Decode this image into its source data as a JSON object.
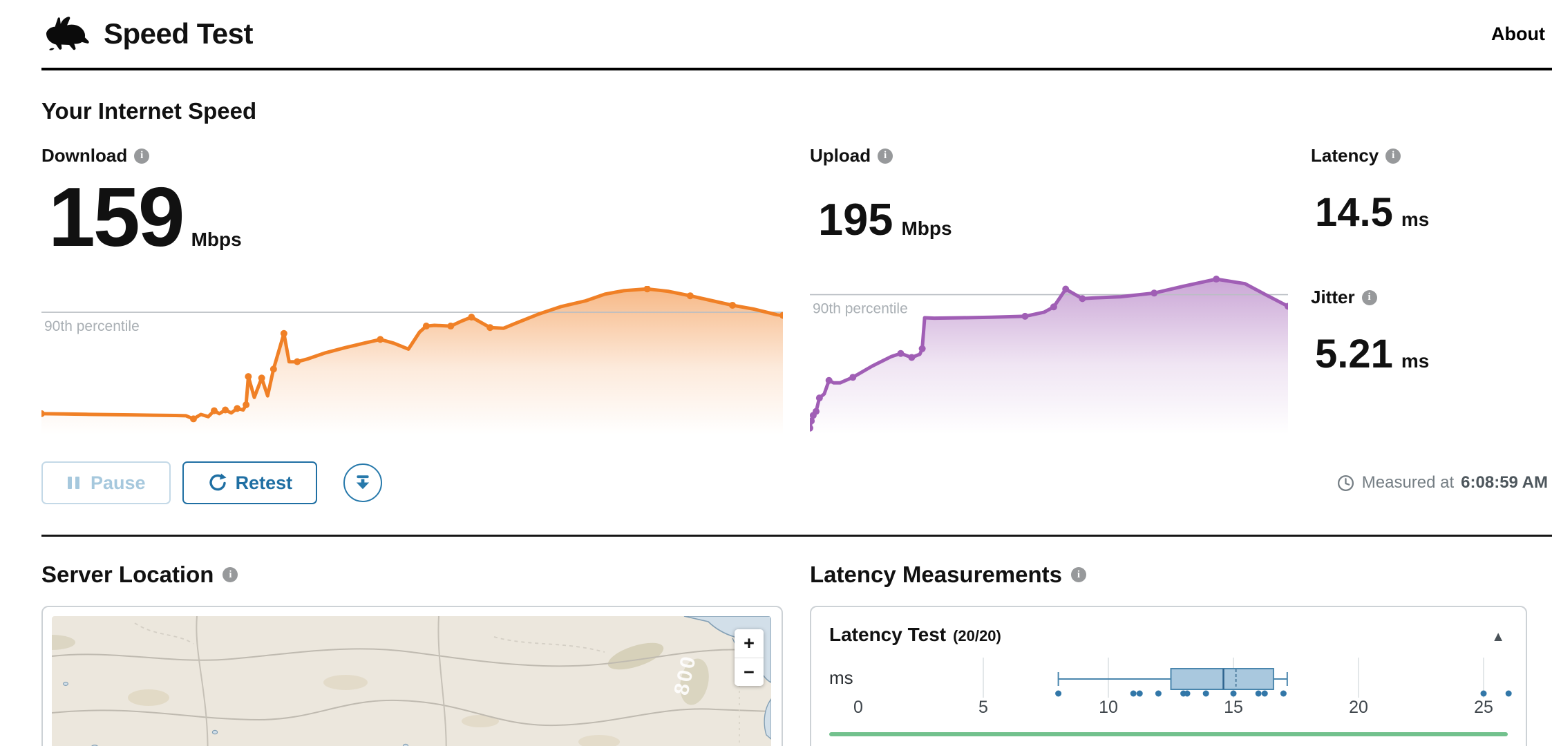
{
  "header": {
    "title": "Speed Test",
    "about_link": "About"
  },
  "main_heading": "Your Internet Speed",
  "metrics": {
    "download": {
      "label": "Download",
      "value": "159",
      "unit": "Mbps"
    },
    "upload": {
      "label": "Upload",
      "value": "195",
      "unit": "Mbps"
    },
    "latency": {
      "label": "Latency",
      "value": "14.5",
      "unit": "ms"
    },
    "jitter": {
      "label": "Jitter",
      "value": "5.21",
      "unit": "ms"
    }
  },
  "controls": {
    "pause_label": "Pause",
    "retest_label": "Retest",
    "measured_prefix": "Measured at",
    "measured_time": "6:08:59 AM"
  },
  "sections": {
    "server_location": {
      "heading": "Server Location"
    },
    "latency_measurements": {
      "heading": "Latency Measurements"
    }
  },
  "latency_card": {
    "title": "Latency Test",
    "progress": "(20/20)",
    "axis_unit": "ms",
    "collapse_icon": "▲"
  },
  "map": {
    "zoom_in_label": "+",
    "zoom_out_label": "−",
    "contour_label": "800"
  },
  "colors": {
    "download_accent": "#F08026",
    "upload_accent": "#A05EB5",
    "button_blue": "#1F6FA3",
    "box_fill": "#A9C8DE",
    "box_stroke": "#4A86AD",
    "green_bar": "#72C18D",
    "percentile_line": "#B9BEC3"
  },
  "chart_data": [
    {
      "type": "area",
      "name": "download-throughput",
      "title": "Download",
      "unit": "Mbps",
      "final_value": 159,
      "color": "#F08026",
      "percentile_label": "90th percentile",
      "percentile_y": 17.7,
      "points": [
        [
          0,
          86
        ],
        [
          3,
          86.2
        ],
        [
          6,
          86.4
        ],
        [
          9,
          86.6
        ],
        [
          12,
          86.8
        ],
        [
          15,
          87
        ],
        [
          18,
          87.2
        ],
        [
          19.5,
          87.4
        ],
        [
          20.5,
          89.5
        ],
        [
          21.5,
          86.5
        ],
        [
          22.5,
          88
        ],
        [
          23.3,
          84
        ],
        [
          24,
          86
        ],
        [
          24.8,
          83.5
        ],
        [
          25.6,
          85.5
        ],
        [
          26.4,
          82.5
        ],
        [
          27.2,
          83.5
        ],
        [
          27.6,
          80
        ],
        [
          27.9,
          61
        ],
        [
          28.7,
          75
        ],
        [
          29.7,
          62
        ],
        [
          30.5,
          74
        ],
        [
          31.3,
          56
        ],
        [
          32.7,
          32
        ],
        [
          33.4,
          51
        ],
        [
          34.5,
          51
        ],
        [
          36,
          49
        ],
        [
          38.3,
          45
        ],
        [
          41,
          41.5
        ],
        [
          43.5,
          38.5
        ],
        [
          45.7,
          36
        ],
        [
          47.5,
          38.5
        ],
        [
          49.5,
          42.5
        ],
        [
          51,
          31
        ],
        [
          51.9,
          27
        ],
        [
          53,
          26.5
        ],
        [
          55.2,
          27
        ],
        [
          56.5,
          24
        ],
        [
          58,
          21
        ],
        [
          60.5,
          28
        ],
        [
          62.3,
          28.5
        ],
        [
          64,
          25
        ],
        [
          67,
          19
        ],
        [
          70,
          14
        ],
        [
          73.4,
          10
        ],
        [
          76,
          5.5
        ],
        [
          78.5,
          3.2
        ],
        [
          81.7,
          2
        ],
        [
          84.5,
          3.6
        ],
        [
          87.5,
          6.6
        ],
        [
          90.5,
          10
        ],
        [
          93.2,
          13
        ],
        [
          96,
          15.5
        ],
        [
          99.2,
          19.4
        ],
        [
          100,
          19.8
        ]
      ],
      "markers": [
        0,
        8,
        11,
        13,
        15,
        17,
        18,
        20,
        22,
        23,
        25,
        30,
        34,
        36,
        38,
        39,
        47,
        49,
        51,
        54
      ]
    },
    {
      "type": "area",
      "name": "upload-throughput",
      "title": "Upload",
      "unit": "Mbps",
      "final_value": 195,
      "color": "#A05EB5",
      "percentile_label": "90th percentile",
      "percentile_y": 12,
      "points": [
        [
          0,
          96
        ],
        [
          0.3,
          91.5
        ],
        [
          0.7,
          88
        ],
        [
          1.3,
          85.5
        ],
        [
          2,
          77
        ],
        [
          3,
          74.5
        ],
        [
          4,
          66
        ],
        [
          5,
          67.5
        ],
        [
          6.3,
          67.5
        ],
        [
          9,
          64
        ],
        [
          13,
          57
        ],
        [
          17,
          51
        ],
        [
          19,
          49
        ],
        [
          21.3,
          51.5
        ],
        [
          23,
          49.5
        ],
        [
          23.5,
          46
        ],
        [
          24,
          26.5
        ],
        [
          26,
          26.8
        ],
        [
          32,
          26.5
        ],
        [
          38,
          26.2
        ],
        [
          45,
          25.6
        ],
        [
          49,
          23
        ],
        [
          51,
          19.7
        ],
        [
          53.5,
          8.5
        ],
        [
          57,
          14.5
        ],
        [
          59.5,
          14
        ],
        [
          65,
          13.3
        ],
        [
          72,
          11
        ],
        [
          78,
          6.8
        ],
        [
          85,
          2.2
        ],
        [
          91,
          5.1
        ],
        [
          95.3,
          12
        ],
        [
          100,
          19.3
        ]
      ],
      "markers": [
        0,
        1,
        2,
        3,
        4,
        6,
        9,
        12,
        13,
        15,
        20,
        22,
        23,
        24,
        27,
        29,
        32
      ]
    },
    {
      "type": "boxplot",
      "name": "latency-distribution",
      "title": "Latency Test",
      "unit": "ms",
      "count_label": "(20/20)",
      "ticks": [
        0,
        5,
        10,
        15,
        20,
        25
      ],
      "xlim": [
        0,
        26.5
      ],
      "whisker_low": 8,
      "q1": 12.5,
      "median": 14.6,
      "mean": 15.1,
      "q3": 16.6,
      "whisker_high": 17.15,
      "samples": [
        8,
        11,
        11.25,
        12,
        13,
        13.15,
        13.9,
        15,
        16,
        16.25,
        17,
        25,
        26
      ]
    }
  ]
}
